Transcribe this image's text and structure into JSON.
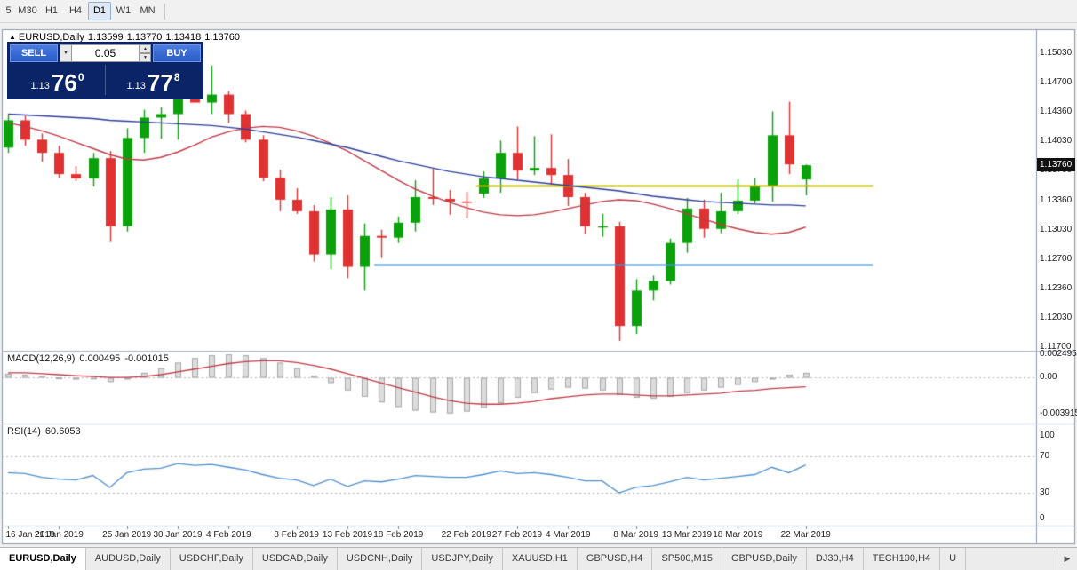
{
  "toolbar": {
    "timeframes": [
      {
        "label": "5",
        "active": false
      },
      {
        "label": "M30",
        "active": false
      },
      {
        "label": "H1",
        "active": false
      },
      {
        "label": "H4",
        "active": false
      },
      {
        "label": "D1",
        "active": true
      },
      {
        "label": "W1",
        "active": false
      },
      {
        "label": "MN",
        "active": false
      }
    ]
  },
  "chart": {
    "marker_icon": "▲",
    "title": "EURUSD,Daily",
    "open": "1.13599",
    "high": "1.13770",
    "low": "1.13418",
    "close": "1.13760"
  },
  "trade_panel": {
    "sell_label": "SELL",
    "buy_label": "BUY",
    "volume": "0.05",
    "dropdown_icon": "▼",
    "up_icon": "▲",
    "down_icon": "▼",
    "sell_price_small": "1.13",
    "sell_price_big": "76",
    "sell_price_sup": "0",
    "buy_price_small": "1.13",
    "buy_price_big": "77",
    "buy_price_sup": "8"
  },
  "price_axis": {
    "labels": [
      "1.15030",
      "1.14700",
      "1.14360",
      "1.14030",
      "1.13700",
      "1.13360",
      "1.13030",
      "1.12700",
      "1.12360",
      "1.12030",
      "1.11700"
    ],
    "badge": "1.13760"
  },
  "date_axis": {
    "labels": [
      {
        "text": "16 Jan 2019",
        "index": 0
      },
      {
        "text": "21 Jan 2019",
        "index": 3
      },
      {
        "text": "25 Jan 2019",
        "index": 7
      },
      {
        "text": "30 Jan 2019",
        "index": 10
      },
      {
        "text": "4 Feb 2019",
        "index": 13
      },
      {
        "text": "8 Feb 2019",
        "index": 17
      },
      {
        "text": "13 Feb 2019",
        "index": 20
      },
      {
        "text": "18 Feb 2019",
        "index": 23
      },
      {
        "text": "22 Feb 2019",
        "index": 27
      },
      {
        "text": "27 Feb 2019",
        "index": 30
      },
      {
        "text": "4 Mar 2019",
        "index": 33
      },
      {
        "text": "8 Mar 2019",
        "index": 37
      },
      {
        "text": "13 Mar 2019",
        "index": 40
      },
      {
        "text": "18 Mar 2019",
        "index": 43
      },
      {
        "text": "22 Mar 2019",
        "index": 47
      }
    ]
  },
  "macd_panel": {
    "label": "MACD(12,26,9)",
    "value_main": "0.000495",
    "value_signal": "-0.001015",
    "axis_labels": [
      {
        "text": "0.002495",
        "value": 0.002495
      },
      {
        "text": "0.00",
        "value": 0
      },
      {
        "text": "-0.003915",
        "value": -0.003915
      }
    ]
  },
  "rsi_panel": {
    "label": "RSI(14)",
    "value": "60.6053",
    "axis_labels": [
      {
        "text": "100",
        "value": 100
      },
      {
        "text": "70",
        "value": 70
      },
      {
        "text": "30",
        "value": 30
      },
      {
        "text": "0",
        "value": 0
      }
    ]
  },
  "tabs": {
    "items": [
      {
        "label": "EURUSD,Daily",
        "active": true
      },
      {
        "label": "AUDUSD,Daily",
        "active": false
      },
      {
        "label": "USDCHF,Daily",
        "active": false
      },
      {
        "label": "USDCAD,Daily",
        "active": false
      },
      {
        "label": "USDCNH,Daily",
        "active": false
      },
      {
        "label": "USDJPY,Daily",
        "active": false
      },
      {
        "label": "XAUUSD,H1",
        "active": false
      },
      {
        "label": "GBPUSD,H4",
        "active": false
      },
      {
        "label": "SP500,M15",
        "active": false
      },
      {
        "label": "GBPUSD,Daily",
        "active": false
      },
      {
        "label": "DJ30,H4",
        "active": false
      },
      {
        "label": "TECH100,H4",
        "active": false
      },
      {
        "label": "U",
        "active": false
      }
    ],
    "scroll_right_icon": "▶"
  },
  "colors": {
    "candle_up": "#0ba10b",
    "candle_down": "#e03232",
    "ma_fast": "#c03a4a",
    "ma_slow": "#2e3f9a",
    "macd_hist_fill": "#dcdcdc",
    "macd_hist_stroke": "#a8a8a8",
    "macd_signal": "#c03a4a",
    "rsi_line": "#4f8fd0",
    "hline_yellow": "#b9b500",
    "hline_blue": "#4a90d2",
    "badge_bg": "#111111"
  },
  "chart_data": {
    "type": "candlestick",
    "symbol": "EURUSD",
    "period": "Daily",
    "ohlc_current": {
      "open": 1.13599,
      "high": 1.1377,
      "low": 1.13418,
      "close": 1.1376
    },
    "ylim": [
      1.1168,
      1.1529
    ],
    "candles": [
      [
        1.1396,
        1.1433,
        1.139,
        1.1427
      ],
      [
        1.1427,
        1.1432,
        1.1398,
        1.1405
      ],
      [
        1.1405,
        1.1412,
        1.138,
        1.139
      ],
      [
        1.139,
        1.1398,
        1.1362,
        1.1366
      ],
      [
        1.1366,
        1.1375,
        1.1358,
        1.1361
      ],
      [
        1.1361,
        1.139,
        1.1352,
        1.1384
      ],
      [
        1.1384,
        1.1392,
        1.1289,
        1.1307
      ],
      [
        1.1307,
        1.1418,
        1.1301,
        1.1407
      ],
      [
        1.1407,
        1.1439,
        1.139,
        1.143
      ],
      [
        1.143,
        1.1442,
        1.1406,
        1.1434
      ],
      [
        1.1434,
        1.1501,
        1.1405,
        1.148
      ],
      [
        1.1479,
        1.1503,
        1.1449,
        1.1447
      ],
      [
        1.1447,
        1.1489,
        1.1434,
        1.1456
      ],
      [
        1.1456,
        1.146,
        1.1424,
        1.1434
      ],
      [
        1.1434,
        1.1438,
        1.1402,
        1.1405
      ],
      [
        1.1405,
        1.141,
        1.1358,
        1.1362
      ],
      [
        1.1362,
        1.1371,
        1.1324,
        1.1337
      ],
      [
        1.1337,
        1.135,
        1.1321,
        1.1324
      ],
      [
        1.1324,
        1.1331,
        1.1267,
        1.1275
      ],
      [
        1.1275,
        1.134,
        1.1258,
        1.1326
      ],
      [
        1.1326,
        1.1342,
        1.1248,
        1.1261
      ],
      [
        1.1261,
        1.131,
        1.1234,
        1.1296
      ],
      [
        1.1296,
        1.1303,
        1.1271,
        1.1294
      ],
      [
        1.1294,
        1.1318,
        1.1288,
        1.1311
      ],
      [
        1.1311,
        1.1359,
        1.1301,
        1.134
      ],
      [
        1.134,
        1.1372,
        1.1331,
        1.1338
      ],
      [
        1.1338,
        1.1348,
        1.132,
        1.1335
      ],
      [
        1.1335,
        1.1346,
        1.1316,
        1.1334
      ],
      [
        1.1344,
        1.1369,
        1.1339,
        1.1361
      ],
      [
        1.1361,
        1.1404,
        1.1345,
        1.139
      ],
      [
        1.139,
        1.142,
        1.136,
        1.137
      ],
      [
        1.137,
        1.1409,
        1.1365,
        1.1373
      ],
      [
        1.1373,
        1.1411,
        1.1354,
        1.1365
      ],
      [
        1.1365,
        1.1383,
        1.133,
        1.134
      ],
      [
        1.134,
        1.1345,
        1.1298,
        1.1307
      ],
      [
        1.1307,
        1.1321,
        1.1295,
        1.1307
      ],
      [
        1.1307,
        1.1312,
        1.1177,
        1.1194
      ],
      [
        1.1194,
        1.1247,
        1.1185,
        1.1234
      ],
      [
        1.1234,
        1.1251,
        1.1223,
        1.1245
      ],
      [
        1.1245,
        1.1293,
        1.1241,
        1.1288
      ],
      [
        1.1288,
        1.1339,
        1.1277,
        1.1327
      ],
      [
        1.1327,
        1.1337,
        1.1294,
        1.1304
      ],
      [
        1.1304,
        1.1345,
        1.1299,
        1.1324
      ],
      [
        1.1324,
        1.136,
        1.1321,
        1.1336
      ],
      [
        1.1336,
        1.1362,
        1.1333,
        1.1353
      ],
      [
        1.1353,
        1.1437,
        1.1335,
        1.141
      ],
      [
        1.141,
        1.1448,
        1.1366,
        1.1377
      ],
      [
        1.13599,
        1.1377,
        1.13418,
        1.1376
      ]
    ],
    "ma_fast_red": [
      1.1424,
      1.142,
      1.1415,
      1.1409,
      1.1402,
      1.1395,
      1.1388,
      1.1383,
      1.1382,
      1.1385,
      1.1391,
      1.1399,
      1.1408,
      1.1414,
      1.1418,
      1.142,
      1.1419,
      1.1415,
      1.1409,
      1.1401,
      1.1392,
      1.1381,
      1.137,
      1.1359,
      1.1349,
      1.1341,
      1.1334,
      1.1328,
      1.1323,
      1.132,
      1.1319,
      1.132,
      1.1323,
      1.1327,
      1.1331,
      1.1335,
      1.1337,
      1.1336,
      1.1332,
      1.1327,
      1.1321,
      1.1315,
      1.1309,
      1.1304,
      1.13,
      1.1298,
      1.13,
      1.1306
    ],
    "ma_slow_blue": [
      1.1434,
      1.1433,
      1.1432,
      1.1431,
      1.143,
      1.1429,
      1.1427,
      1.1426,
      1.1425,
      1.1424,
      1.1423,
      1.1422,
      1.1421,
      1.1419,
      1.1417,
      1.1414,
      1.1411,
      1.1408,
      1.1404,
      1.14,
      1.1396,
      1.1391,
      1.1386,
      1.1381,
      1.1377,
      1.1373,
      1.1369,
      1.1366,
      1.1363,
      1.1361,
      1.1359,
      1.1357,
      1.1355,
      1.1353,
      1.1351,
      1.1349,
      1.1347,
      1.1344,
      1.1341,
      1.1339,
      1.1337,
      1.1335,
      1.1334,
      1.1333,
      1.1332,
      1.1331,
      1.1331,
      1.133
    ],
    "hlines": [
      {
        "price": 1.1353,
        "color_key": "hline_yellow",
        "start_index": 28
      },
      {
        "price": 1.1264,
        "color_key": "hline_blue",
        "start_index": 22
      }
    ],
    "macd": {
      "ylim": [
        -0.0048,
        0.0028
      ],
      "histogram": [
        0.0004,
        0.0003,
        0.0001,
        0.0,
        -0.0001,
        -0.0002,
        -0.0005,
        -0.0001,
        0.0005,
        0.001,
        0.0016,
        0.0021,
        0.0024,
        0.0025,
        0.0024,
        0.0021,
        0.0016,
        0.001,
        0.0002,
        -0.0006,
        -0.0014,
        -0.0021,
        -0.0027,
        -0.0032,
        -0.0036,
        -0.0038,
        -0.0039,
        -0.0037,
        -0.0033,
        -0.0028,
        -0.0022,
        -0.0017,
        -0.0013,
        -0.0011,
        -0.0012,
        -0.0014,
        -0.0019,
        -0.0022,
        -0.0023,
        -0.0021,
        -0.0017,
        -0.0014,
        -0.0011,
        -0.0008,
        -0.0005,
        -0.0001,
        0.0003,
        0.000495
      ],
      "signal": [
        0.0005,
        0.0005,
        0.0004,
        0.0003,
        0.0002,
        0.0001,
        0.0,
        0.0,
        0.0001,
        0.0003,
        0.0006,
        0.0009,
        0.0012,
        0.0015,
        0.0017,
        0.0018,
        0.0018,
        0.0016,
        0.0013,
        0.0009,
        0.0004,
        -0.0001,
        -0.0006,
        -0.0011,
        -0.0016,
        -0.0021,
        -0.0025,
        -0.0028,
        -0.0029,
        -0.0029,
        -0.0028,
        -0.0026,
        -0.0023,
        -0.0021,
        -0.0019,
        -0.0018,
        -0.0018,
        -0.0019,
        -0.002,
        -0.002,
        -0.0019,
        -0.0018,
        -0.0017,
        -0.0015,
        -0.0014,
        -0.0012,
        -0.0011,
        -0.001015
      ]
    },
    "rsi": {
      "ylim": [
        0,
        100
      ],
      "levels": [
        70,
        30
      ],
      "values": [
        52,
        51,
        47,
        45,
        44,
        49,
        36,
        52,
        56,
        57,
        62,
        60,
        61,
        58,
        55,
        50,
        46,
        44,
        38,
        45,
        37,
        43,
        42,
        45,
        49,
        48,
        47,
        47,
        50,
        54,
        51,
        52,
        50,
        47,
        43,
        43,
        30,
        36,
        38,
        42,
        47,
        44,
        46,
        48,
        50,
        58,
        52,
        60.6
      ]
    }
  }
}
